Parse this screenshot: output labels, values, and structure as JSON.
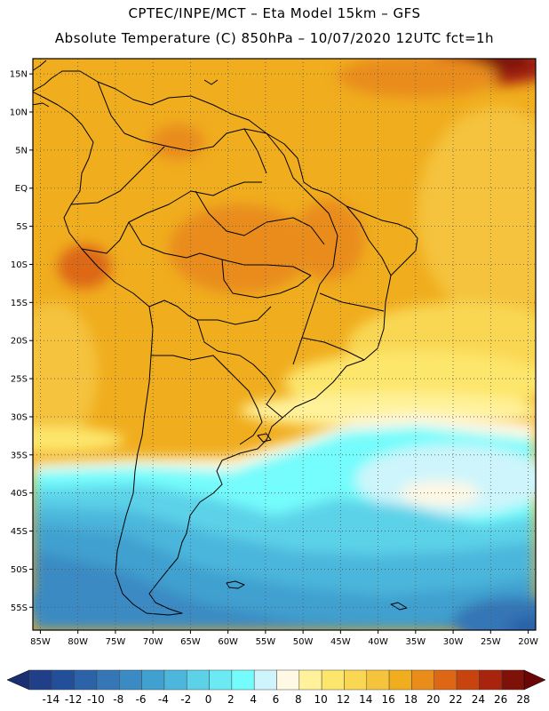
{
  "header": {
    "line1": "CPTEC/INPE/MCT –  Eta Model 15km – GFS",
    "line2": "Absolute Temperature (C) 850hPa – 10/07/2020 12UTC fct=1h"
  },
  "map": {
    "lat_labels": [
      "15N",
      "10N",
      "5N",
      "EQ",
      "5S",
      "10S",
      "15S",
      "20S",
      "25S",
      "30S",
      "35S",
      "40S",
      "45S",
      "50S",
      "55S"
    ],
    "lon_labels": [
      "85W",
      "80W",
      "75W",
      "70W",
      "65W",
      "60W",
      "55W",
      "50W",
      "45W",
      "40W",
      "35W",
      "30W",
      "25W",
      "20W"
    ],
    "lat_values": [
      15,
      10,
      5,
      0,
      -5,
      -10,
      -15,
      -20,
      -25,
      -30,
      -35,
      -40,
      -45,
      -50,
      -55
    ],
    "lon_values": [
      -85,
      -80,
      -75,
      -70,
      -65,
      -60,
      -55,
      -50,
      -45,
      -40,
      -35,
      -30,
      -25,
      -20
    ],
    "lon_range": [
      -86,
      -19
    ],
    "lat_range": [
      -58,
      17
    ],
    "grid": "dotted",
    "legend_position": "bottom"
  },
  "colorbar": {
    "labels": [
      "-14",
      "-12",
      "-10",
      "-8",
      "-6",
      "-4",
      "-2",
      "0",
      "2",
      "4",
      "6",
      "8",
      "10",
      "12",
      "14",
      "16",
      "18",
      "20",
      "22",
      "24",
      "26",
      "28"
    ],
    "colors": [
      "#1f3f88",
      "#234f9a",
      "#2c62a8",
      "#3476b6",
      "#3a8ac3",
      "#40a0cf",
      "#4cb6dc",
      "#5cd2e8",
      "#6ceaf4",
      "#74fcfc",
      "#cdf5fb",
      "#fff8e4",
      "#fff29a",
      "#fde66c",
      "#f9d752",
      "#f5c33c",
      "#f0ad1e",
      "#e98c1a",
      "#dd6714",
      "#c9430f",
      "#a8240c",
      "#7e1208"
    ]
  }
}
